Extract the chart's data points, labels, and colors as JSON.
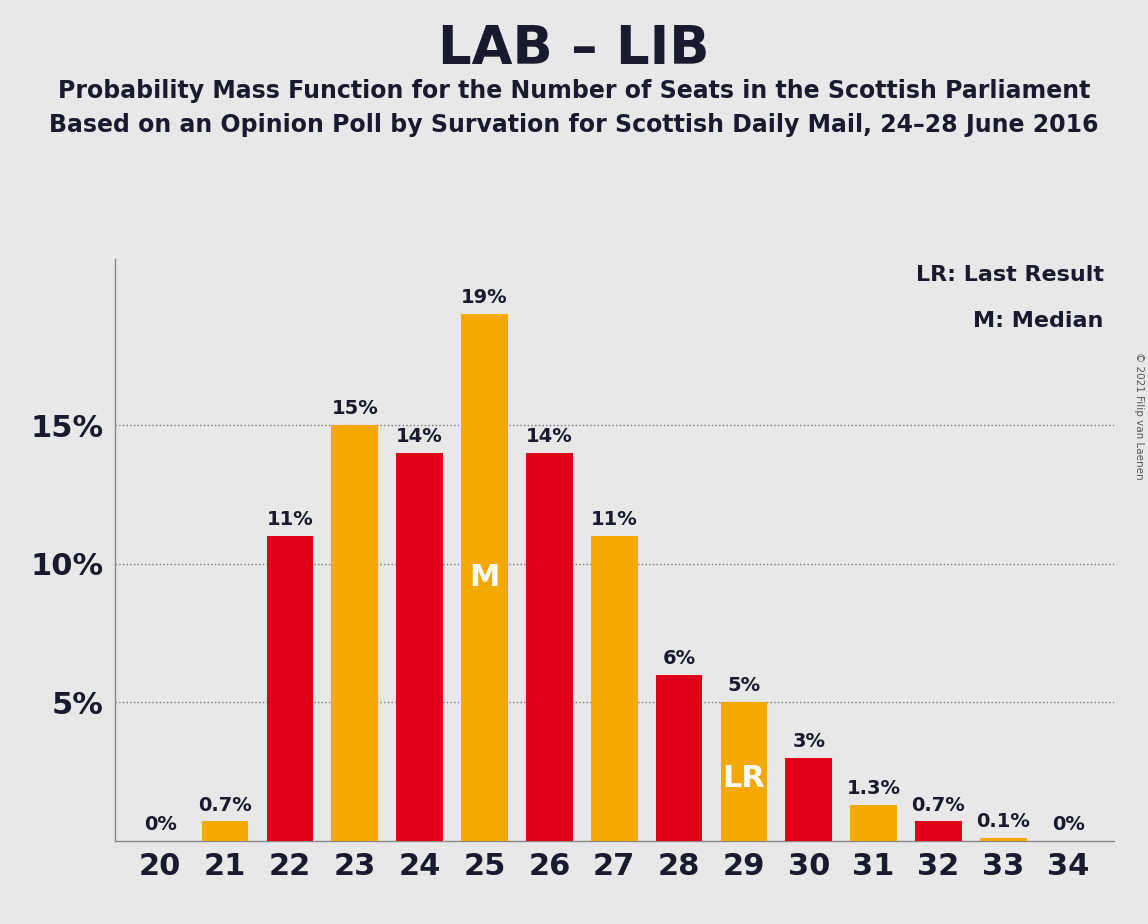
{
  "title": "LAB – LIB",
  "subtitle1": "Probability Mass Function for the Number of Seats in the Scottish Parliament",
  "subtitle2": "Based on an Opinion Poll by Survation for Scottish Daily Mail, 24–28 June 2016",
  "copyright": "© 2021 Filip van Laenen",
  "legend1": "LR: Last Result",
  "legend2": "M: Median",
  "x_values": [
    20,
    21,
    22,
    23,
    24,
    25,
    26,
    27,
    28,
    29,
    30,
    31,
    32,
    33,
    34
  ],
  "red_values": [
    0.0,
    0.0,
    11.0,
    0.0,
    14.0,
    0.0,
    14.0,
    0.0,
    6.0,
    0.0,
    3.0,
    0.0,
    0.7,
    0.0,
    0.0
  ],
  "orange_values": [
    0.0,
    0.7,
    0.0,
    15.0,
    0.0,
    19.0,
    0.0,
    11.0,
    0.0,
    5.0,
    0.0,
    1.3,
    0.0,
    0.1,
    0.0
  ],
  "bar_colors": [
    "red",
    "orange",
    "red",
    "orange",
    "red",
    "orange",
    "red",
    "orange",
    "red",
    "orange",
    "red",
    "orange",
    "red",
    "orange",
    "red"
  ],
  "red_color": "#e0001a",
  "orange_color": "#f5a800",
  "background_color": "#e8e8e8",
  "median_seat": 25,
  "lr_seat": 29,
  "ylim_max": 21,
  "bar_width": 0.72,
  "title_fontsize": 38,
  "subtitle_fontsize": 17,
  "tick_fontsize": 22,
  "label_fontsize": 14,
  "legend_fontsize": 16,
  "annotation_fontsize": 22
}
